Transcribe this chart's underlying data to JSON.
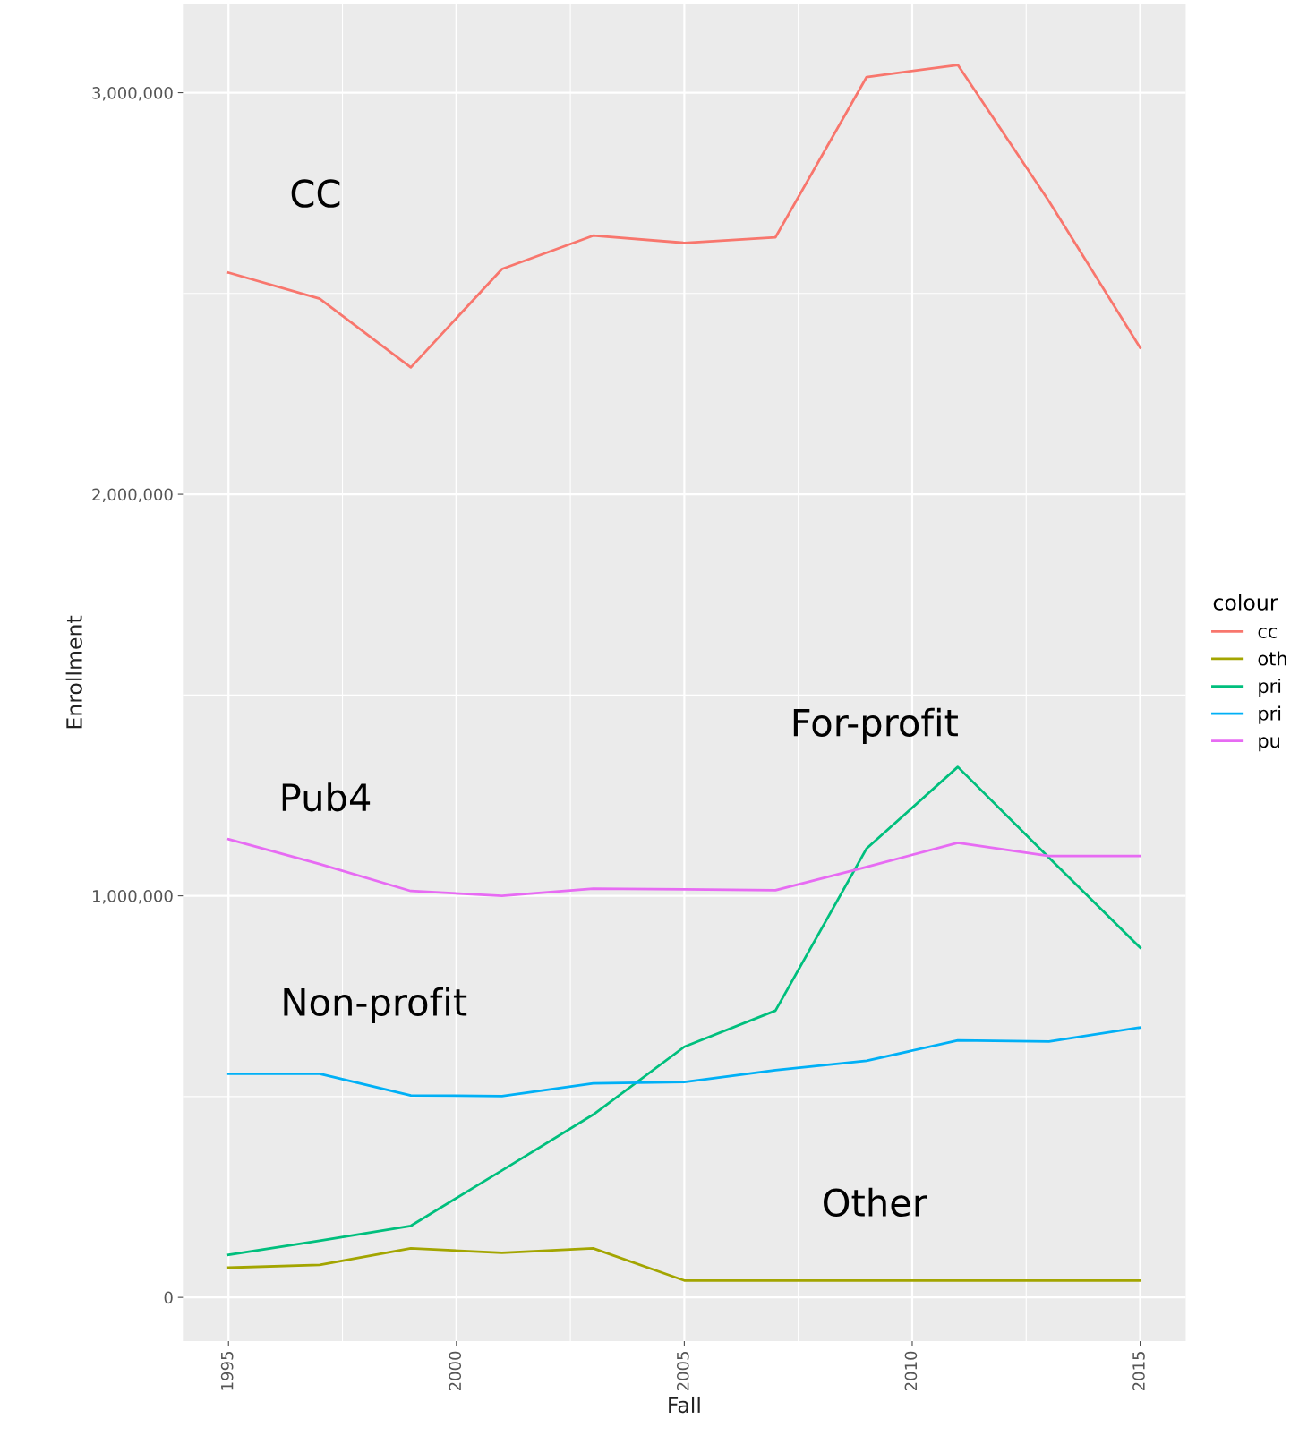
{
  "chart_data": {
    "type": "line",
    "xlabel": "Fall",
    "ylabel": "Enrollment",
    "legend_title": "colour",
    "x": [
      1995,
      1997,
      1999,
      2001,
      2003,
      2005,
      2007,
      2009,
      2011,
      2013,
      2015
    ],
    "series": [
      {
        "name": "cc",
        "color": "#f8766d",
        "values": [
          2552000,
          2487000,
          2316000,
          2561000,
          2644000,
          2626000,
          2640000,
          3039000,
          3069000,
          2730000,
          2365000
        ]
      },
      {
        "name": "oth",
        "color": "#a3a500",
        "values": [
          74000,
          81000,
          122000,
          111000,
          122000,
          42000,
          42000,
          42000,
          42000,
          42000,
          42000
        ]
      },
      {
        "name": "pri",
        "color": "#00bf7d",
        "values": [
          106000,
          141000,
          178000,
          316000,
          455000,
          624000,
          714000,
          1118000,
          1321000,
          1095000,
          871000
        ]
      },
      {
        "name": "pri",
        "color": "#00b0f6",
        "values": [
          557000,
          557000,
          503000,
          501000,
          533000,
          536000,
          566000,
          589000,
          640000,
          637000,
          672000
        ]
      },
      {
        "name": "pu",
        "color": "#e76bf3",
        "values": [
          1141000,
          1079000,
          1012000,
          1000000,
          1018000,
          1016000,
          1014000,
          1072000,
          1132000,
          1099000,
          1099000
        ]
      }
    ],
    "xlim": [
      1994,
      2016
    ],
    "xticks": [
      1995,
      2000,
      2005,
      2010,
      2015
    ],
    "ylim": [
      -109000,
      3220000
    ],
    "yticks": [
      {
        "value": 0,
        "label": "0"
      },
      {
        "value": 1000000,
        "label": "1,000,000"
      },
      {
        "value": 2000000,
        "label": "2,000,000"
      },
      {
        "value": 3000000,
        "label": "3,000,000"
      }
    ],
    "grid": true,
    "legend": "right",
    "marker": "none",
    "line_style": "solid",
    "annotations": [
      "CC",
      "Other",
      "For-profit",
      "Non-profit",
      "Pub4"
    ]
  }
}
